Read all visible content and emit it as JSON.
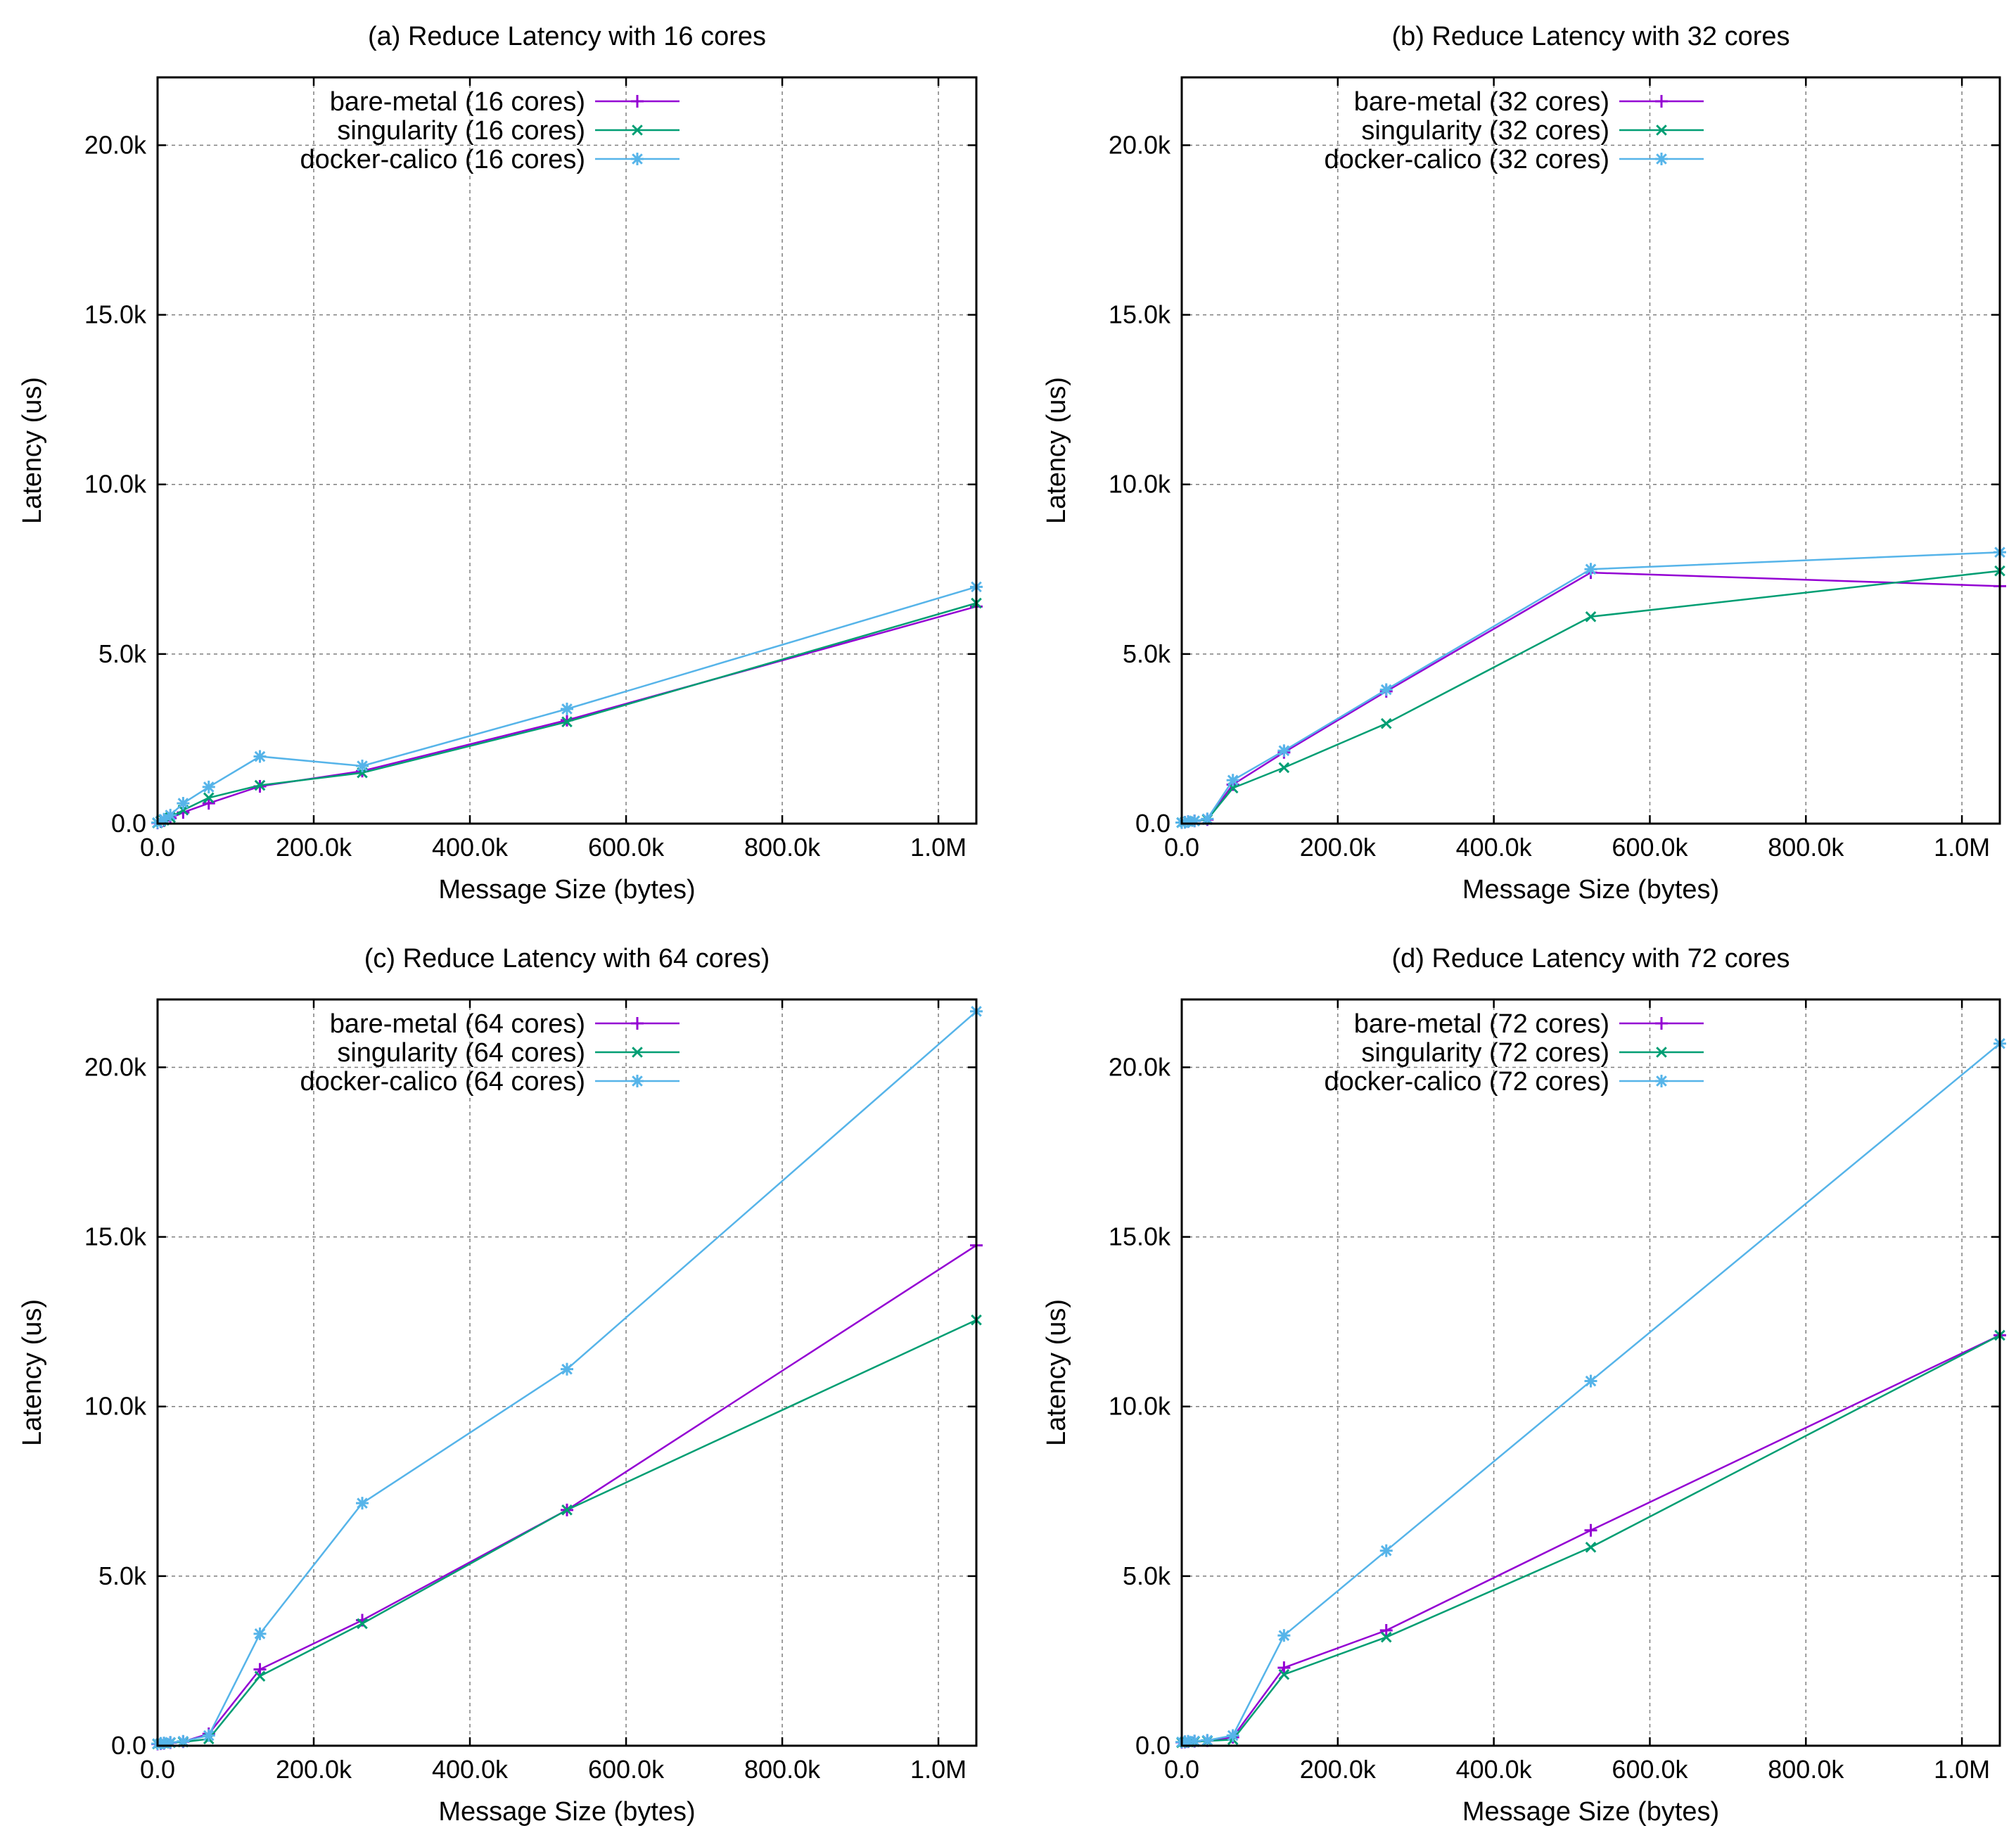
{
  "chart_data": [
    {
      "type": "line",
      "title": "(a) Reduce Latency with 16 cores",
      "xlabel": "Message Size (bytes)",
      "ylabel": "Latency (us)",
      "xlim": [
        0,
        1048576
      ],
      "ylim": [
        0,
        22000
      ],
      "xticks": [
        0,
        200000,
        400000,
        600000,
        800000,
        1000000
      ],
      "xtick_labels": [
        "0.0",
        "200.0k",
        "400.0k",
        "600.0k",
        "800.0k",
        "1.0M"
      ],
      "yticks": [
        0,
        5000,
        10000,
        15000,
        20000
      ],
      "ytick_labels": [
        "0.0",
        "5.0k",
        "10.0k",
        "15.0k",
        "20.0k"
      ],
      "grid": true,
      "legend_position": "top-left",
      "x": [
        4,
        4096,
        8192,
        16384,
        32768,
        65536,
        131072,
        262144,
        524288,
        1048576
      ],
      "series": [
        {
          "name": "bare-metal (16 cores)",
          "color": "#9400d3",
          "marker": "plus",
          "values": [
            20,
            60,
            90,
            160,
            330,
            600,
            1100,
            1550,
            3050,
            6400
          ]
        },
        {
          "name": "singularity (16 cores)",
          "color": "#009e73",
          "marker": "cross",
          "values": [
            20,
            60,
            100,
            180,
            400,
            760,
            1130,
            1500,
            3000,
            6500
          ]
        },
        {
          "name": "docker-calico (16 cores)",
          "color": "#56b4e9",
          "marker": "star",
          "values": [
            30,
            80,
            130,
            250,
            600,
            1080,
            1980,
            1700,
            3380,
            6980
          ]
        }
      ]
    },
    {
      "type": "line",
      "title": "(b) Reduce Latency with 32 cores",
      "xlabel": "Message Size (bytes)",
      "ylabel": "Latency (us)",
      "xlim": [
        0,
        1048576
      ],
      "ylim": [
        0,
        22000
      ],
      "xticks": [
        0,
        200000,
        400000,
        600000,
        800000,
        1000000
      ],
      "xtick_labels": [
        "0.0",
        "200.0k",
        "400.0k",
        "600.0k",
        "800.0k",
        "1.0M"
      ],
      "yticks": [
        0,
        5000,
        10000,
        15000,
        20000
      ],
      "ytick_labels": [
        "0.0",
        "5.0k",
        "10.0k",
        "15.0k",
        "20.0k"
      ],
      "grid": true,
      "legend_position": "top-left",
      "x": [
        4,
        4096,
        8192,
        16384,
        32768,
        65536,
        131072,
        262144,
        524288,
        1048576
      ],
      "series": [
        {
          "name": "bare-metal (32 cores)",
          "color": "#9400d3",
          "marker": "plus",
          "values": [
            30,
            40,
            60,
            80,
            120,
            1150,
            2100,
            3900,
            7400,
            7000
          ]
        },
        {
          "name": "singularity (32 cores)",
          "color": "#009e73",
          "marker": "cross",
          "values": [
            30,
            40,
            60,
            80,
            120,
            1050,
            1650,
            2950,
            6100,
            7450
          ]
        },
        {
          "name": "docker-calico (32 cores)",
          "color": "#56b4e9",
          "marker": "star",
          "values": [
            30,
            40,
            60,
            80,
            140,
            1280,
            2150,
            3950,
            7500,
            8000
          ]
        }
      ]
    },
    {
      "type": "line",
      "title": "(c) Reduce Latency with 64 cores)",
      "xlabel": "Message Size (bytes)",
      "ylabel": "Latency (us)",
      "xlim": [
        0,
        1048576
      ],
      "ylim": [
        0,
        22000
      ],
      "xticks": [
        0,
        200000,
        400000,
        600000,
        800000,
        1000000
      ],
      "xtick_labels": [
        "0.0",
        "200.0k",
        "400.0k",
        "600.0k",
        "800.0k",
        "1.0M"
      ],
      "yticks": [
        0,
        5000,
        10000,
        15000,
        20000
      ],
      "ytick_labels": [
        "0.0",
        "5.0k",
        "10.0k",
        "15.0k",
        "20.0k"
      ],
      "grid": true,
      "legend_position": "top-left",
      "x": [
        4,
        4096,
        8192,
        16384,
        32768,
        65536,
        131072,
        262144,
        524288,
        1048576
      ],
      "series": [
        {
          "name": "bare-metal (64 cores)",
          "color": "#9400d3",
          "marker": "plus",
          "values": [
            50,
            60,
            70,
            90,
            120,
            350,
            2250,
            3700,
            6950,
            14750
          ]
        },
        {
          "name": "singularity (64 cores)",
          "color": "#009e73",
          "marker": "cross",
          "values": [
            50,
            60,
            70,
            90,
            110,
            200,
            2050,
            3600,
            6950,
            12550
          ]
        },
        {
          "name": "docker-calico (64 cores)",
          "color": "#56b4e9",
          "marker": "star",
          "values": [
            60,
            70,
            80,
            100,
            130,
            300,
            3300,
            7150,
            11100,
            21650
          ]
        }
      ]
    },
    {
      "type": "line",
      "title": "(d) Reduce Latency with 72 cores",
      "xlabel": "Message Size (bytes)",
      "ylabel": "Latency (us)",
      "xlim": [
        0,
        1048576
      ],
      "ylim": [
        0,
        22000
      ],
      "xticks": [
        0,
        200000,
        400000,
        600000,
        800000,
        1000000
      ],
      "xtick_labels": [
        "0.0",
        "200.0k",
        "400.0k",
        "600.0k",
        "800.0k",
        "1.0M"
      ],
      "yticks": [
        0,
        5000,
        10000,
        15000,
        20000
      ],
      "ytick_labels": [
        "0.0",
        "5.0k",
        "10.0k",
        "15.0k",
        "20.0k"
      ],
      "grid": true,
      "legend_position": "top-left",
      "x": [
        4,
        4096,
        8192,
        16384,
        32768,
        65536,
        131072,
        262144,
        524288,
        1048576
      ],
      "series": [
        {
          "name": "bare-metal (72 cores)",
          "color": "#9400d3",
          "marker": "plus",
          "values": [
            100,
            110,
            120,
            130,
            150,
            250,
            2300,
            3400,
            6350,
            12100
          ]
        },
        {
          "name": "singularity (72 cores)",
          "color": "#009e73",
          "marker": "cross",
          "values": [
            90,
            100,
            110,
            120,
            140,
            180,
            2100,
            3200,
            5850,
            12100
          ]
        },
        {
          "name": "docker-calico (72 cores)",
          "color": "#56b4e9",
          "marker": "star",
          "values": [
            110,
            120,
            130,
            140,
            160,
            300,
            3250,
            5750,
            10750,
            20700
          ]
        }
      ]
    }
  ]
}
